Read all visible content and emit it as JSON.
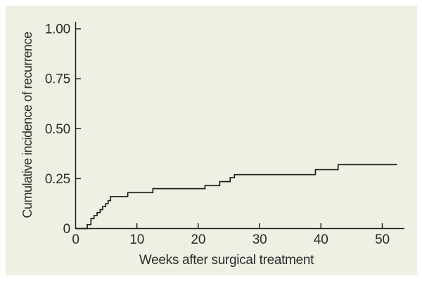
{
  "figure": {
    "page_color": "#ffffff",
    "panel_color": "#edf1e4",
    "axis_color": "#1f1f1f",
    "curve_color": "#1f1f1f",
    "text_color": "#2b2b2b"
  },
  "chart_data": {
    "type": "line",
    "subtype": "step-function-cumulative-incidence",
    "title": "",
    "xlabel": "Weeks after surgical treatment",
    "ylabel": "Cumulative incidence of recurrence",
    "x_ticks": [
      0,
      10,
      20,
      30,
      40,
      50
    ],
    "x_tick_labels": [
      "0",
      "10",
      "20",
      "30",
      "40",
      "50"
    ],
    "y_ticks": [
      0,
      0.25,
      0.5,
      0.75,
      1.0
    ],
    "y_tick_labels": [
      "0",
      "0.25",
      "0.50",
      "0.75",
      "1.00"
    ],
    "xlim": [
      0,
      53.5
    ],
    "ylim": [
      0,
      1.0
    ],
    "grid": false,
    "legend": null,
    "series": [
      {
        "name": "Cumulative incidence of recurrence",
        "step_points": [
          [
            0,
            0
          ],
          [
            1.9,
            0.02
          ],
          [
            2.5,
            0.05
          ],
          [
            3.0,
            0.065
          ],
          [
            3.5,
            0.08
          ],
          [
            4.0,
            0.095
          ],
          [
            4.4,
            0.11
          ],
          [
            4.9,
            0.125
          ],
          [
            5.3,
            0.14
          ],
          [
            5.7,
            0.16
          ],
          [
            8.5,
            0.18
          ],
          [
            12.6,
            0.2
          ],
          [
            21.1,
            0.215
          ],
          [
            23.5,
            0.235
          ],
          [
            25.2,
            0.255
          ],
          [
            25.9,
            0.27
          ],
          [
            39.1,
            0.295
          ],
          [
            42.8,
            0.32
          ]
        ],
        "end_week": 52.4,
        "final_value": 0.32
      }
    ]
  }
}
